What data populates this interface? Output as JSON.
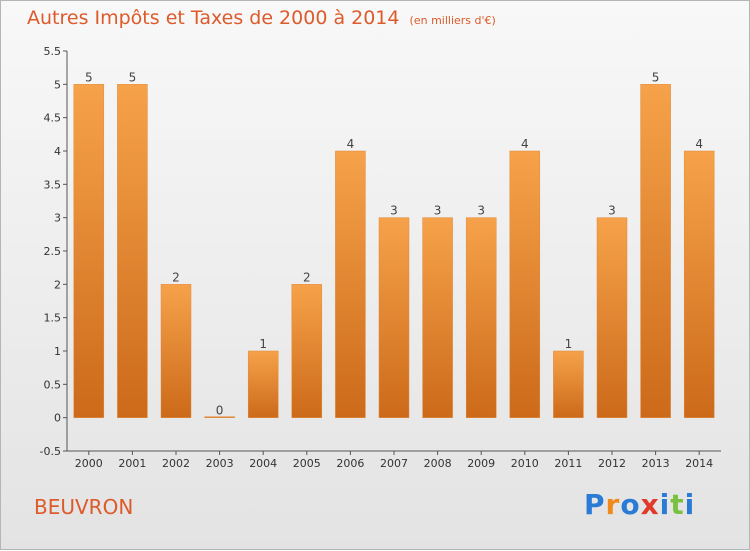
{
  "title": "Autres Impôts et Taxes de 2000 à 2014",
  "subtitle": "(en milliers d'€)",
  "commune": "BEUVRON",
  "logo": {
    "letters": [
      "P",
      "r",
      "o",
      "x",
      "i",
      "t",
      "i"
    ],
    "colors": [
      "#2a7bd6",
      "#f08a1c",
      "#2a7bd6",
      "#e03a2a",
      "#2a7bd6",
      "#7ac142",
      "#2a7bd6"
    ]
  },
  "colors": {
    "bar": "#f39a3e",
    "bar_dark": "#d9741f",
    "title": "#dd5a2a",
    "axis_text": "#333333"
  },
  "chart_data": {
    "type": "bar",
    "title": "Autres Impôts et Taxes de 2000 à 2014",
    "subtitle": "(en milliers d'€)",
    "categories": [
      "2000",
      "2001",
      "2002",
      "2003",
      "2004",
      "2005",
      "2006",
      "2007",
      "2008",
      "2009",
      "2010",
      "2011",
      "2012",
      "2013",
      "2014"
    ],
    "values": [
      5,
      5,
      2,
      0,
      1,
      2,
      4,
      3,
      3,
      3,
      4,
      1,
      3,
      5,
      4
    ],
    "value_labels": [
      "5",
      "5",
      "2",
      "0",
      "1",
      "2",
      "4",
      "3",
      "3",
      "3",
      "4",
      "1",
      "3",
      "5",
      "4"
    ],
    "ylim": [
      -0.5,
      5.5
    ],
    "yticks": [
      -0.5,
      0,
      0.5,
      1,
      1.5,
      2,
      2.5,
      3,
      3.5,
      4,
      4.5,
      5,
      5.5
    ],
    "ytick_labels": [
      "-0.5",
      "0",
      "0.5",
      "1",
      "1.5",
      "2",
      "2.5",
      "3",
      "3.5",
      "4",
      "4.5",
      "5",
      "5.5"
    ],
    "grid": false
  }
}
